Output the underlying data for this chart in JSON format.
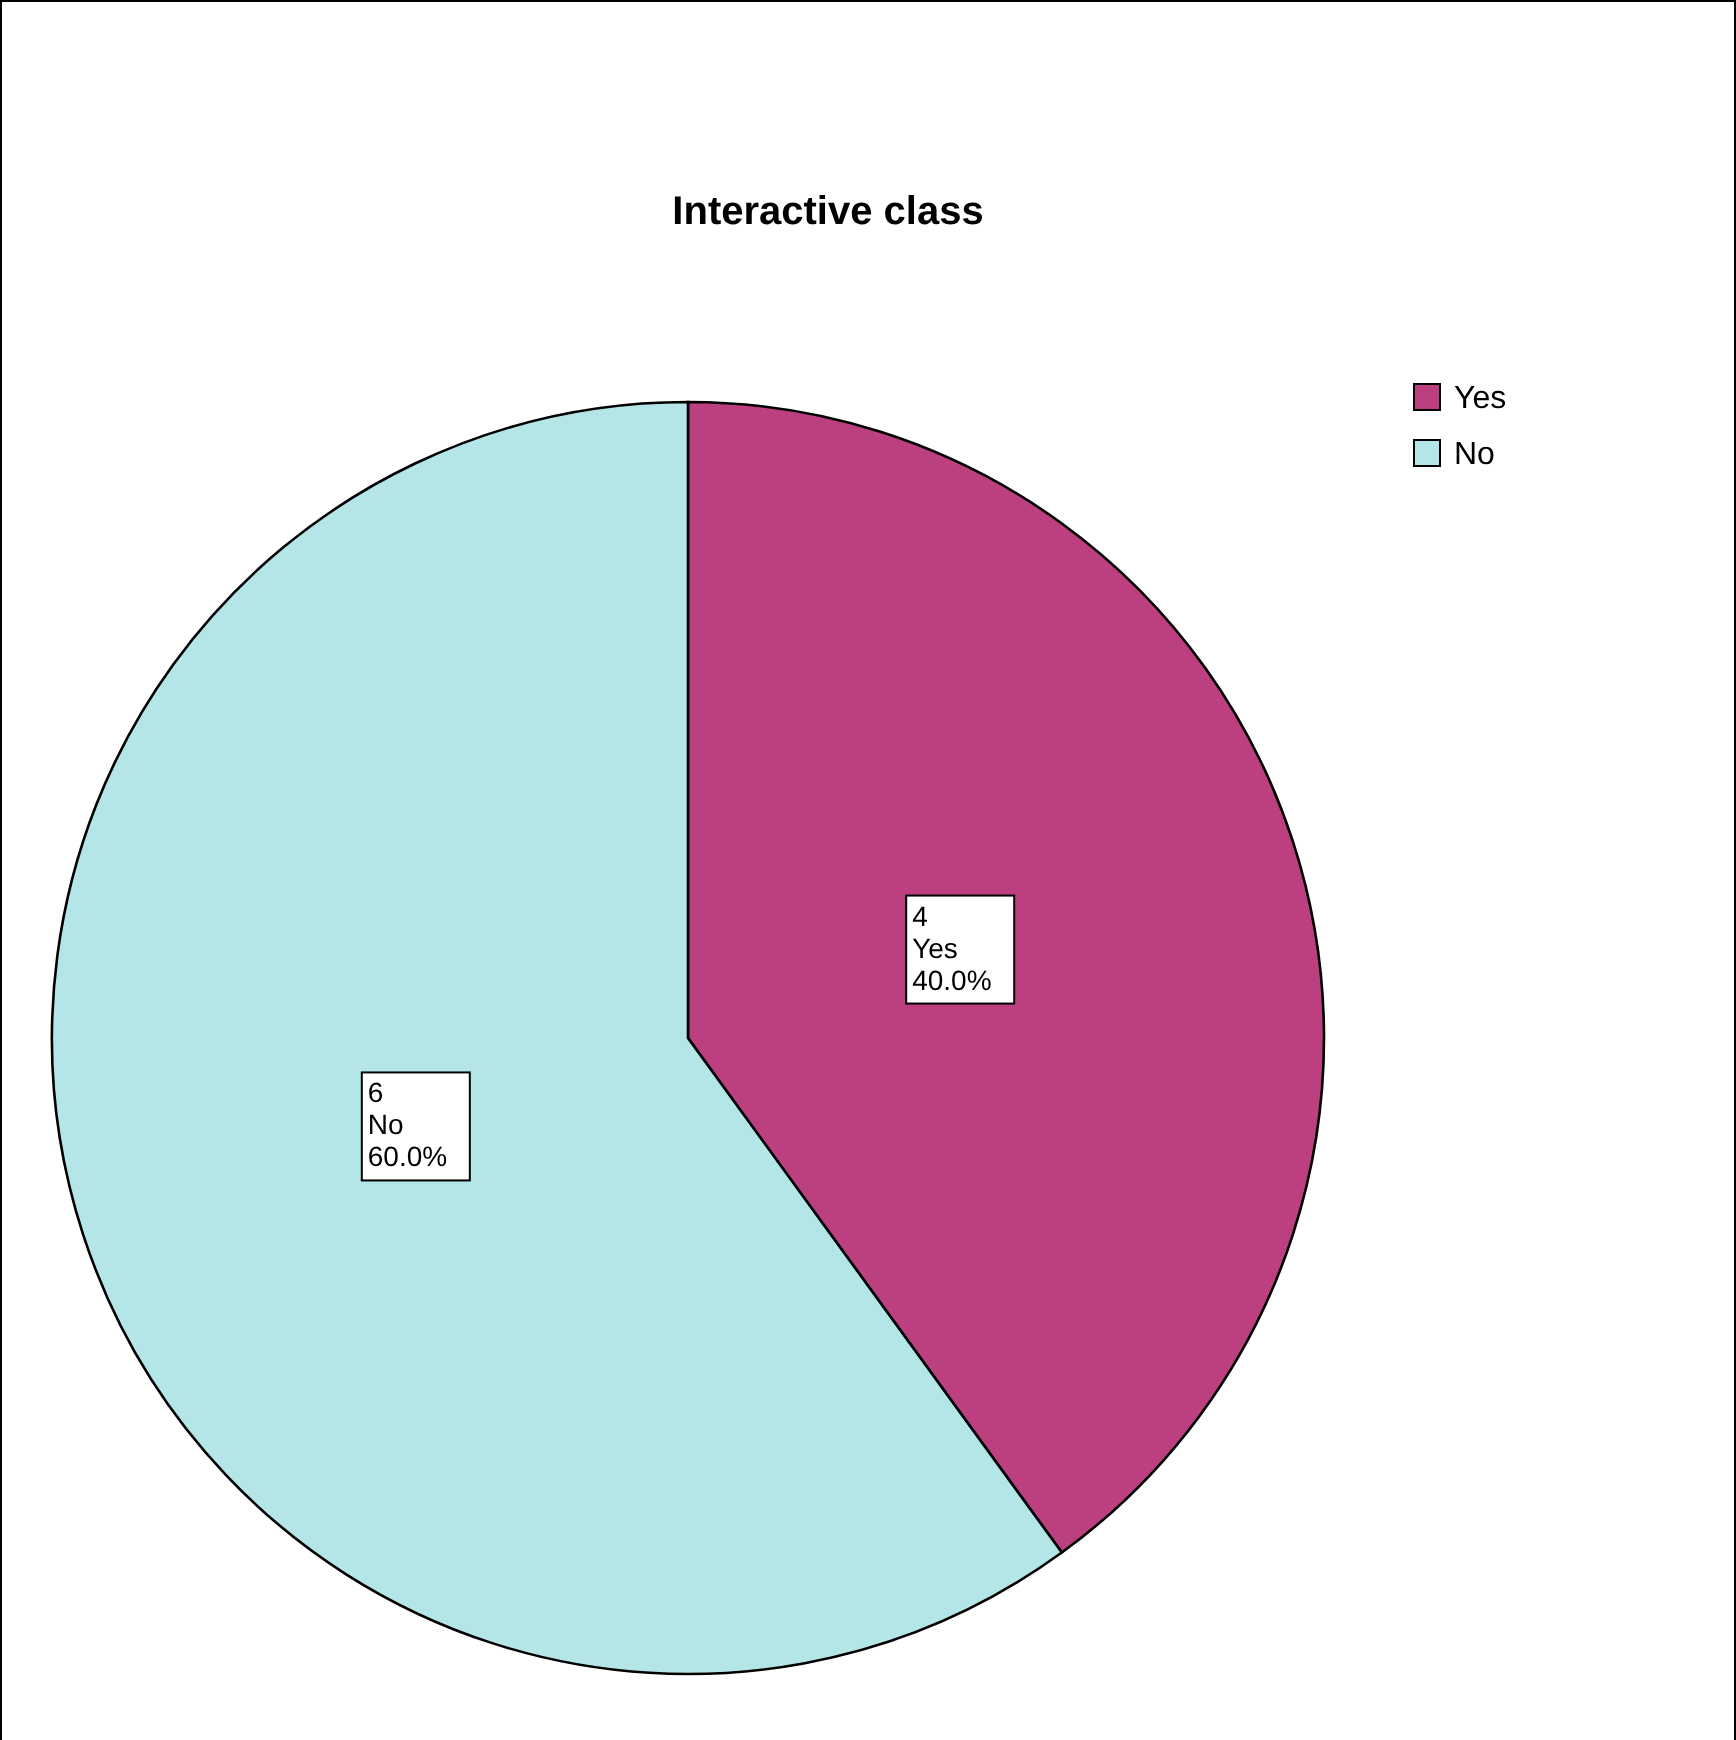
{
  "chart_data": {
    "type": "pie",
    "title": "Interactive class",
    "categories": [
      "Yes",
      "No"
    ],
    "values": [
      4,
      6
    ],
    "colors": [
      "#bc4080",
      "#b4e6e8"
    ],
    "value_labels": [
      "4\nYes\n40.0%",
      "6\nNo\n60.0%"
    ],
    "legend": "top right"
  }
}
